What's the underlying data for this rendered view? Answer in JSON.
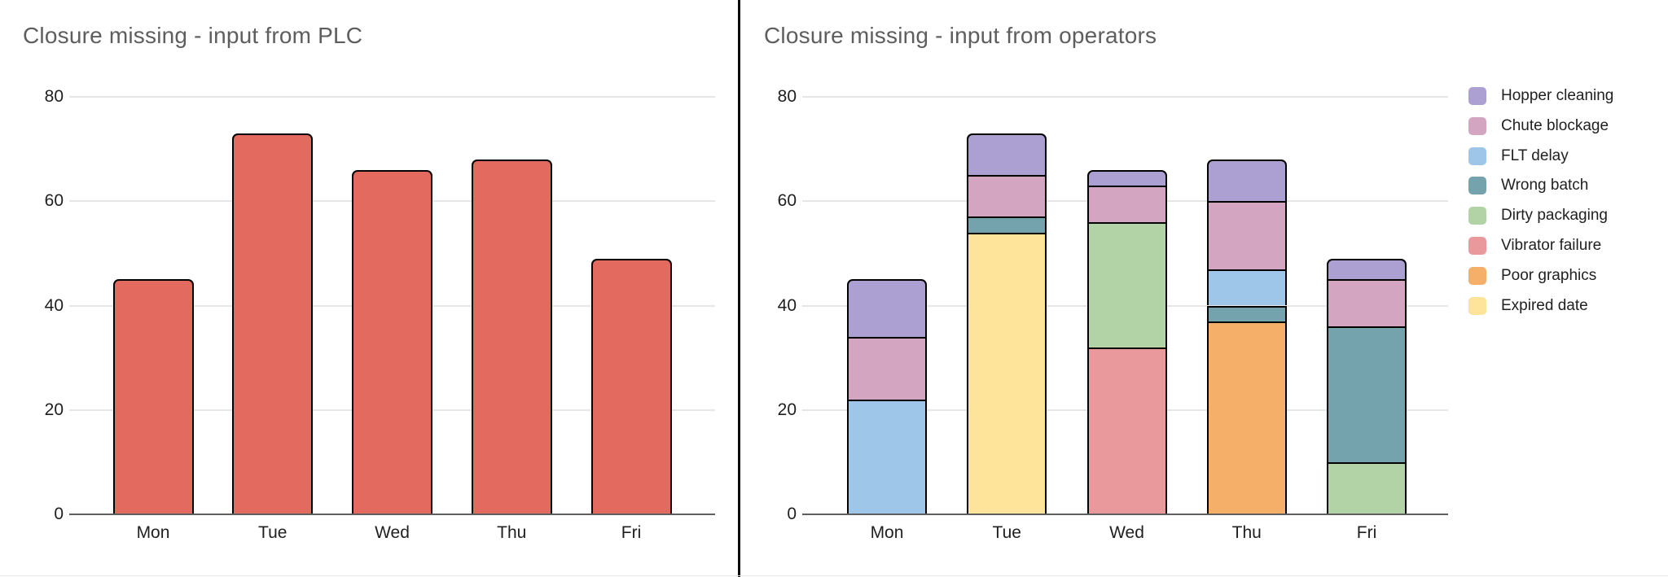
{
  "page": {
    "background": "#ffffff",
    "divider_color": "#0b0b0b"
  },
  "style": {
    "title_color": "#5e5e5e",
    "axis_label_color": "#1f1f1f",
    "legend_label_color": "#212121",
    "gridline_color": "#e6e6e6",
    "axis_line_color": "#5f5f5f",
    "bar_border_color": "#000000"
  },
  "chart_data": [
    {
      "type": "bar",
      "title": "Closure missing - input from PLC",
      "categories": [
        "Mon",
        "Tue",
        "Wed",
        "Thu",
        "Fri"
      ],
      "series": [
        {
          "color": "#e36a5e",
          "values": [
            45,
            73,
            66,
            68,
            49
          ]
        }
      ],
      "ylim": [
        0,
        80
      ],
      "yticks": [
        0,
        20,
        40,
        60,
        80
      ],
      "grid": true,
      "legend": "none"
    },
    {
      "type": "stacked-bar",
      "title": "Closure missing - input from operators",
      "categories": [
        "Mon",
        "Tue",
        "Wed",
        "Thu",
        "Fri"
      ],
      "series": [
        {
          "name": "Hopper cleaning",
          "color": "#aca0d3",
          "values": [
            11,
            8,
            3,
            8,
            4
          ]
        },
        {
          "name": "Chute blockage",
          "color": "#d4a5c1",
          "values": [
            12,
            8,
            7,
            13,
            9
          ]
        },
        {
          "name": "FLT delay",
          "color": "#9dc6e8",
          "values": [
            22,
            0,
            0,
            7,
            0
          ]
        },
        {
          "name": "Wrong batch",
          "color": "#74a3ad",
          "values": [
            0,
            3,
            0,
            3,
            26
          ]
        },
        {
          "name": "Dirty packaging",
          "color": "#b2d3a5",
          "values": [
            0,
            0,
            24,
            0,
            10
          ]
        },
        {
          "name": "Vibrator failure",
          "color": "#e9999c",
          "values": [
            0,
            0,
            32,
            0,
            0
          ]
        },
        {
          "name": "Poor graphics",
          "color": "#f6af68",
          "values": [
            0,
            0,
            0,
            37,
            0
          ]
        },
        {
          "name": "Expired date",
          "color": "#fde49a",
          "values": [
            0,
            54,
            0,
            0,
            0
          ]
        }
      ],
      "stack_order": "first-series-on-top",
      "totals": [
        45,
        73,
        66,
        68,
        49
      ],
      "ylim": [
        0,
        80
      ],
      "yticks": [
        0,
        20,
        40,
        60,
        80
      ],
      "grid": true,
      "legend": "right"
    }
  ]
}
